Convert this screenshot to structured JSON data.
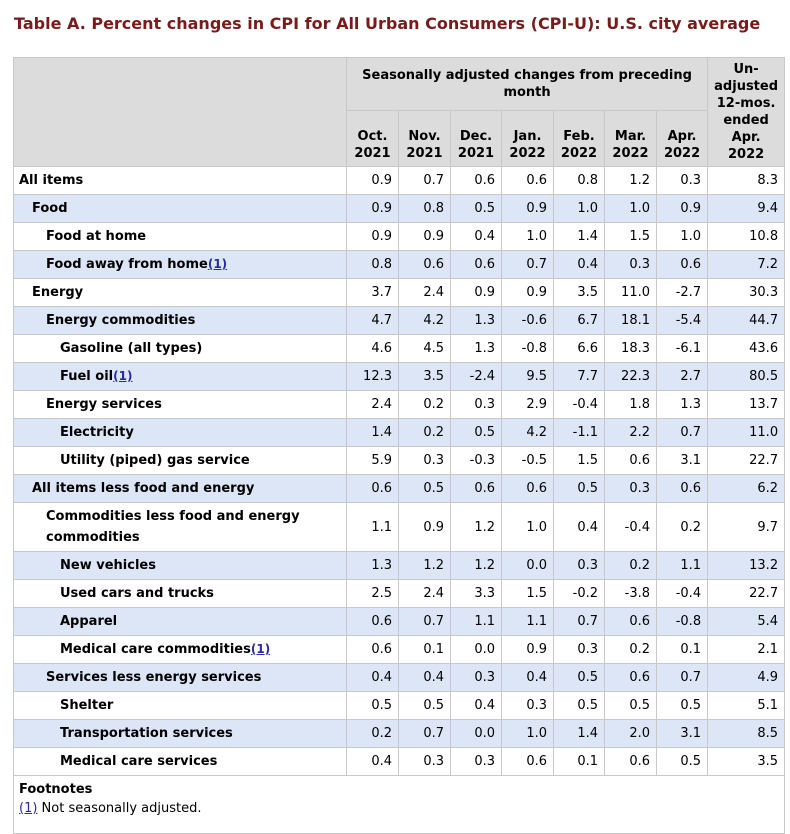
{
  "title": "Table A. Percent changes in CPI for All Urban Consumers (CPI-U): U.S. city average",
  "header": {
    "seasonal_group": "Seasonally adjusted changes from preceding month",
    "unadjusted": [
      "Un-",
      "adjusted",
      "12-mos.",
      "ended",
      "Apr.",
      "2022"
    ],
    "months": [
      {
        "mon": "Oct.",
        "yr": "2021"
      },
      {
        "mon": "Nov.",
        "yr": "2021"
      },
      {
        "mon": "Dec.",
        "yr": "2021"
      },
      {
        "mon": "Jan.",
        "yr": "2022"
      },
      {
        "mon": "Feb.",
        "yr": "2022"
      },
      {
        "mon": "Mar.",
        "yr": "2022"
      },
      {
        "mon": "Apr.",
        "yr": "2022"
      }
    ]
  },
  "rows": [
    {
      "label": "All items",
      "indent": 0,
      "values": [
        "0.9",
        "0.7",
        "0.6",
        "0.6",
        "0.8",
        "1.2",
        "0.3",
        "8.3"
      ]
    },
    {
      "label": "Food",
      "indent": 1,
      "values": [
        "0.9",
        "0.8",
        "0.5",
        "0.9",
        "1.0",
        "1.0",
        "0.9",
        "9.4"
      ]
    },
    {
      "label": "Food at home",
      "indent": 2,
      "values": [
        "0.9",
        "0.9",
        "0.4",
        "1.0",
        "1.4",
        "1.5",
        "1.0",
        "10.8"
      ]
    },
    {
      "label": "Food away from home",
      "indent": 2,
      "footnote": "(1)",
      "values": [
        "0.8",
        "0.6",
        "0.6",
        "0.7",
        "0.4",
        "0.3",
        "0.6",
        "7.2"
      ]
    },
    {
      "label": "Energy",
      "indent": 1,
      "values": [
        "3.7",
        "2.4",
        "0.9",
        "0.9",
        "3.5",
        "11.0",
        "-2.7",
        "30.3"
      ]
    },
    {
      "label": "Energy commodities",
      "indent": 2,
      "values": [
        "4.7",
        "4.2",
        "1.3",
        "-0.6",
        "6.7",
        "18.1",
        "-5.4",
        "44.7"
      ]
    },
    {
      "label": "Gasoline (all types)",
      "indent": 3,
      "values": [
        "4.6",
        "4.5",
        "1.3",
        "-0.8",
        "6.6",
        "18.3",
        "-6.1",
        "43.6"
      ]
    },
    {
      "label": "Fuel oil",
      "indent": 3,
      "footnote": "(1)",
      "values": [
        "12.3",
        "3.5",
        "-2.4",
        "9.5",
        "7.7",
        "22.3",
        "2.7",
        "80.5"
      ]
    },
    {
      "label": "Energy services",
      "indent": 2,
      "values": [
        "2.4",
        "0.2",
        "0.3",
        "2.9",
        "-0.4",
        "1.8",
        "1.3",
        "13.7"
      ]
    },
    {
      "label": "Electricity",
      "indent": 3,
      "values": [
        "1.4",
        "0.2",
        "0.5",
        "4.2",
        "-1.1",
        "2.2",
        "0.7",
        "11.0"
      ]
    },
    {
      "label": "Utility (piped) gas service",
      "indent": 3,
      "values": [
        "5.9",
        "0.3",
        "-0.3",
        "-0.5",
        "1.5",
        "0.6",
        "3.1",
        "22.7"
      ]
    },
    {
      "label": "All items less food and energy",
      "indent": 1,
      "values": [
        "0.6",
        "0.5",
        "0.6",
        "0.6",
        "0.5",
        "0.3",
        "0.6",
        "6.2"
      ]
    },
    {
      "label": "Commodities less food and energy commodities",
      "indent": 2,
      "values": [
        "1.1",
        "0.9",
        "1.2",
        "1.0",
        "0.4",
        "-0.4",
        "0.2",
        "9.7"
      ]
    },
    {
      "label": "New vehicles",
      "indent": 3,
      "values": [
        "1.3",
        "1.2",
        "1.2",
        "0.0",
        "0.3",
        "0.2",
        "1.1",
        "13.2"
      ]
    },
    {
      "label": "Used cars and trucks",
      "indent": 3,
      "values": [
        "2.5",
        "2.4",
        "3.3",
        "1.5",
        "-0.2",
        "-3.8",
        "-0.4",
        "22.7"
      ]
    },
    {
      "label": "Apparel",
      "indent": 3,
      "values": [
        "0.6",
        "0.7",
        "1.1",
        "1.1",
        "0.7",
        "0.6",
        "-0.8",
        "5.4"
      ]
    },
    {
      "label": "Medical care commodities",
      "indent": 3,
      "footnote": "(1)",
      "values": [
        "0.6",
        "0.1",
        "0.0",
        "0.9",
        "0.3",
        "0.2",
        "0.1",
        "2.1"
      ]
    },
    {
      "label": "Services less energy services",
      "indent": 2,
      "values": [
        "0.4",
        "0.4",
        "0.3",
        "0.4",
        "0.5",
        "0.6",
        "0.7",
        "4.9"
      ]
    },
    {
      "label": "Shelter",
      "indent": 3,
      "values": [
        "0.5",
        "0.5",
        "0.4",
        "0.3",
        "0.5",
        "0.5",
        "0.5",
        "5.1"
      ]
    },
    {
      "label": "Transportation services",
      "indent": 3,
      "values": [
        "0.2",
        "0.7",
        "0.0",
        "1.0",
        "1.4",
        "2.0",
        "3.1",
        "8.5"
      ]
    },
    {
      "label": "Medical care services",
      "indent": 3,
      "values": [
        "0.4",
        "0.3",
        "0.3",
        "0.6",
        "0.1",
        "0.6",
        "0.5",
        "3.5"
      ]
    }
  ],
  "footnotes": {
    "heading": "Footnotes",
    "items": [
      {
        "ref": "(1)",
        "text": " Not seasonally adjusted."
      }
    ]
  },
  "colors": {
    "title": "#7b1a1a",
    "header_bg": "#dcdcdc",
    "alt_row_bg": "#dde6f7",
    "link": "#2a2aa8"
  }
}
